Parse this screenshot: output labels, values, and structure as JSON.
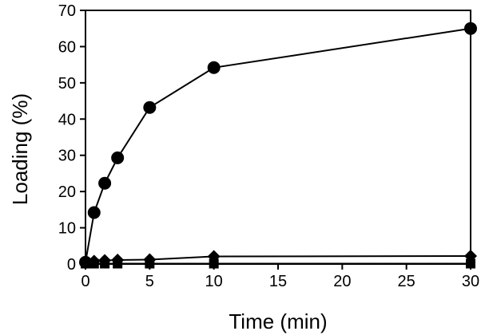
{
  "chart_data": {
    "type": "line",
    "title": "",
    "xlabel": "Time (min)",
    "ylabel": "Loading (%)",
    "xlim": [
      0,
      30
    ],
    "ylim": [
      0,
      70
    ],
    "xticks": [
      0,
      5,
      10,
      15,
      20,
      25,
      30
    ],
    "yticks": [
      0,
      10,
      20,
      30,
      40,
      50,
      60,
      70
    ],
    "grid": false,
    "legend": "none",
    "series": [
      {
        "marker": "circle",
        "color": "#000000",
        "x": [
          0,
          0.67,
          1.5,
          2.5,
          5,
          10,
          30
        ],
        "y": [
          0.5,
          14.2,
          22.3,
          29.3,
          43.2,
          54.2,
          65.0
        ]
      },
      {
        "marker": "diamond",
        "color": "#000000",
        "x": [
          0,
          0.67,
          1.5,
          2.5,
          5,
          10,
          30
        ],
        "y": [
          0.4,
          0.8,
          1.0,
          1.1,
          1.2,
          2.1,
          2.2
        ]
      },
      {
        "marker": "square",
        "color": "#000000",
        "x": [
          0,
          0.67,
          1.5,
          2.5,
          5,
          10,
          30
        ],
        "y": [
          0.1,
          0.1,
          0.1,
          0.1,
          0.1,
          0.1,
          0.1
        ]
      }
    ]
  }
}
